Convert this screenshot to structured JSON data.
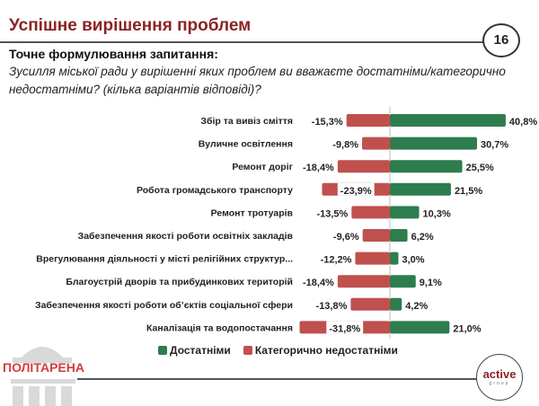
{
  "header": {
    "title": "Успішне вирішення проблем",
    "page_number": "16"
  },
  "question": {
    "label": "Точне формулювання запитання:",
    "text": "Зусилля міської ради у вирішенні яких проблем ви вважаєте достатніми/категорично недостатніми? (кілька варіантів відповіді)?"
  },
  "chart_data": {
    "type": "bar",
    "orientation": "horizontal-diverging",
    "categories": [
      "Збір та вивіз сміття",
      "Вуличне освітлення",
      "Ремонт доріг",
      "Робота громадського транспорту",
      "Ремонт тротуарів",
      "Забезпечення якості роботи освітніх закладів",
      "Врегулювання діяльності у місті релігійних структур...",
      "Благоустрій дворів та прибудинкових територій",
      "Забезпечення якості роботи об’єктів соціальної сфери",
      "Каналізація та водопостачання"
    ],
    "series": [
      {
        "name": "Достатніми",
        "color": "#2e7d4f",
        "values": [
          40.8,
          30.7,
          25.5,
          21.5,
          10.3,
          6.2,
          3.0,
          9.1,
          4.2,
          21.0
        ],
        "labels": [
          "40,8%",
          "30,7%",
          "25,5%",
          "21,5%",
          "10,3%",
          "6,2%",
          "3,0%",
          "9,1%",
          "4,2%",
          "21,0%"
        ]
      },
      {
        "name": "Категорично недостатніми",
        "color": "#c0504d",
        "values": [
          -15.3,
          -9.8,
          -18.4,
          -23.9,
          -13.5,
          -9.6,
          -12.2,
          -18.4,
          -13.8,
          -31.8
        ],
        "labels": [
          "-15,3%",
          "-9,8%",
          "-18,4%",
          "-23,9%",
          "-13,5%",
          "-9,6%",
          "-12,2%",
          "-18,4%",
          "-13,8%",
          "-31,8%"
        ]
      }
    ],
    "legend_position": "bottom",
    "grid": false
  },
  "footer": {
    "logo_left": "ПОЛІТАРЕНА",
    "logo_right_main": "active",
    "logo_right_sub": "group"
  }
}
